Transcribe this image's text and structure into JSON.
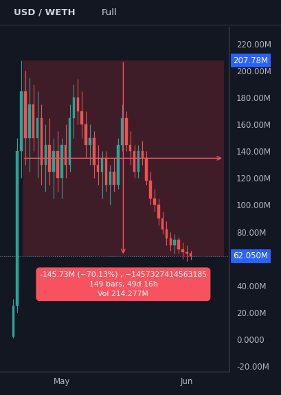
{
  "chart_data": {
    "type": "candlestick",
    "title": "USD / WETH",
    "buttons": [
      "Full"
    ],
    "grid": false,
    "x": [
      -12,
      -11,
      -10,
      -9,
      -8,
      -7,
      -6,
      -5,
      -4,
      -3,
      -2,
      -1,
      0,
      1,
      2,
      3,
      4,
      5,
      6,
      7,
      8,
      9,
      10,
      11,
      12,
      13,
      14,
      15,
      16,
      17,
      18,
      19,
      20,
      21,
      22,
      23,
      24,
      25,
      26,
      27,
      28,
      29,
      30,
      31,
      32
    ],
    "open": [
      2,
      25,
      140,
      185,
      150,
      175,
      150,
      165,
      130,
      145,
      125,
      140,
      120,
      145,
      130,
      165,
      180,
      170,
      160,
      145,
      150,
      130,
      125,
      135,
      115,
      125,
      115,
      145,
      165,
      145,
      140,
      125,
      140,
      135,
      118,
      105,
      100,
      90,
      82,
      75,
      70,
      74,
      67,
      65,
      64
    ],
    "high": [
      30,
      150,
      207.78,
      200,
      195,
      190,
      185,
      175,
      160,
      165,
      150,
      155,
      150,
      160,
      175,
      190,
      194,
      185,
      170,
      160,
      155,
      145,
      140,
      140,
      130,
      135,
      150,
      175,
      170,
      155,
      145,
      145,
      148,
      140,
      125,
      112,
      105,
      95,
      88,
      80,
      78,
      76,
      72,
      70,
      66
    ],
    "low": [
      1,
      20,
      120,
      130,
      125,
      140,
      120,
      115,
      110,
      115,
      105,
      110,
      105,
      120,
      125,
      150,
      160,
      150,
      135,
      130,
      120,
      115,
      105,
      110,
      100,
      110,
      112,
      140,
      140,
      130,
      120,
      120,
      130,
      115,
      100,
      95,
      85,
      78,
      70,
      66,
      64,
      64,
      60,
      58,
      59
    ],
    "close": [
      25,
      140,
      185,
      150,
      175,
      150,
      165,
      130,
      145,
      125,
      140,
      120,
      145,
      130,
      165,
      180,
      170,
      160,
      145,
      150,
      130,
      125,
      135,
      115,
      125,
      115,
      145,
      165,
      145,
      140,
      125,
      140,
      135,
      118,
      105,
      100,
      90,
      82,
      75,
      70,
      74,
      67,
      65,
      64,
      62.05
    ],
    "xlim": [
      -15.3,
      41.4
    ],
    "xticks": [
      {
        "value": 0,
        "label": "May"
      },
      {
        "value": 31,
        "label": "Jun"
      }
    ],
    "ylim": [
      -24,
      233
    ],
    "yticks": [
      {
        "value": -20,
        "label": "-20.00M"
      },
      {
        "value": 0,
        "label": "0.0000"
      },
      {
        "value": 20,
        "label": "20.00M"
      },
      {
        "value": 40,
        "label": "40.00M"
      },
      {
        "value": 80,
        "label": "80.00M"
      },
      {
        "value": 100,
        "label": "100.00M"
      },
      {
        "value": 120,
        "label": "120.00M"
      },
      {
        "value": 140,
        "label": "140.00M"
      },
      {
        "value": 160,
        "label": "160.00M"
      },
      {
        "value": 180,
        "label": "180.00M"
      },
      {
        "value": 200,
        "label": "200.00M"
      },
      {
        "value": 220,
        "label": "220.00M"
      }
    ],
    "price_labels": [
      {
        "value": 207.78,
        "label": "207.78M"
      },
      {
        "value": 62.05,
        "label": "62.050M",
        "line_style": "dotted"
      }
    ],
    "measure": {
      "x_start": -9.7,
      "x_end": 40.2,
      "from": 207.78,
      "to": 62.05,
      "texts": [
        "-145.73M (−70.13%) , −1457327414563185",
        "149 bars, 49d 16h",
        "Vol 214.277M"
      ]
    }
  }
}
